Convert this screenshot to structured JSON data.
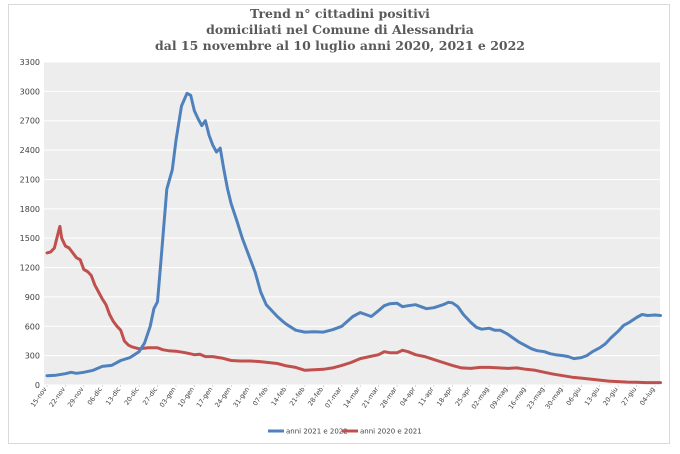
{
  "chart_data": {
    "type": "line",
    "title": [
      "Trend n° cittadini positivi",
      "domiciliati nel Comune di Alessandria",
      "dal 15 novembre al 10 luglio anni 2020, 2021 e 2022"
    ],
    "xlabel": "",
    "ylabel": "",
    "ylim": [
      0,
      3300
    ],
    "yticks": [
      0,
      300,
      600,
      900,
      1200,
      1500,
      1800,
      2100,
      2400,
      2700,
      3000,
      3300
    ],
    "categories": [
      "15-nov",
      "22-nov",
      "29-nov",
      "06-dic",
      "13-dic",
      "20-dic",
      "27-dic",
      "03-gen",
      "10-gen",
      "17-gen",
      "24-gen",
      "31-gen",
      "07-feb",
      "14-feb",
      "21-feb",
      "28-feb",
      "07-mar",
      "14-mar",
      "21-mar",
      "28-mar",
      "04-apr",
      "11-apr",
      "18-apr",
      "25-apr",
      "02-mag",
      "09-mag",
      "16-mag",
      "23-mag",
      "30-mag",
      "06-giu",
      "13-giu",
      "20-giu",
      "27-giu",
      "04-lug"
    ],
    "grid": true,
    "legend_position": "bottom",
    "series": [
      {
        "name": "anni 2021 e 2022",
        "color": "#4f81bd",
        "points": [
          [
            0,
            95
          ],
          [
            0.5,
            100
          ],
          [
            1,
            115
          ],
          [
            1.3,
            130
          ],
          [
            1.6,
            120
          ],
          [
            2,
            130
          ],
          [
            2.5,
            150
          ],
          [
            3,
            190
          ],
          [
            3.5,
            200
          ],
          [
            3.8,
            230
          ],
          [
            4,
            250
          ],
          [
            4.5,
            280
          ],
          [
            5,
            340
          ],
          [
            5.3,
            430
          ],
          [
            5.6,
            600
          ],
          [
            5.8,
            780
          ],
          [
            6,
            850
          ],
          [
            6.2,
            1300
          ],
          [
            6.5,
            2000
          ],
          [
            6.8,
            2200
          ],
          [
            7,
            2500
          ],
          [
            7.3,
            2850
          ],
          [
            7.6,
            2980
          ],
          [
            7.8,
            2960
          ],
          [
            8,
            2800
          ],
          [
            8.2,
            2720
          ],
          [
            8.4,
            2650
          ],
          [
            8.6,
            2700
          ],
          [
            8.8,
            2550
          ],
          [
            9,
            2450
          ],
          [
            9.2,
            2380
          ],
          [
            9.4,
            2420
          ],
          [
            9.6,
            2200
          ],
          [
            9.8,
            2000
          ],
          [
            10,
            1850
          ],
          [
            10.3,
            1680
          ],
          [
            10.6,
            1500
          ],
          [
            11,
            1300
          ],
          [
            11.3,
            1150
          ],
          [
            11.6,
            950
          ],
          [
            11.9,
            820
          ],
          [
            12.2,
            760
          ],
          [
            12.5,
            700
          ],
          [
            12.8,
            650
          ],
          [
            13,
            620
          ],
          [
            13.5,
            560
          ],
          [
            14,
            540
          ],
          [
            14.5,
            545
          ],
          [
            15,
            540
          ],
          [
            15.5,
            565
          ],
          [
            16,
            600
          ],
          [
            16.3,
            650
          ],
          [
            16.6,
            700
          ],
          [
            17,
            740
          ],
          [
            17.3,
            720
          ],
          [
            17.6,
            700
          ],
          [
            18,
            760
          ],
          [
            18.3,
            810
          ],
          [
            18.6,
            830
          ],
          [
            19,
            835
          ],
          [
            19.3,
            800
          ],
          [
            19.6,
            810
          ],
          [
            20,
            820
          ],
          [
            20.3,
            800
          ],
          [
            20.6,
            780
          ],
          [
            21,
            790
          ],
          [
            21.5,
            820
          ],
          [
            21.8,
            845
          ],
          [
            22,
            840
          ],
          [
            22.3,
            800
          ],
          [
            22.6,
            720
          ],
          [
            23,
            640
          ],
          [
            23.3,
            590
          ],
          [
            23.6,
            570
          ],
          [
            24,
            580
          ],
          [
            24.3,
            560
          ],
          [
            24.6,
            560
          ],
          [
            25,
            520
          ],
          [
            25.3,
            480
          ],
          [
            25.6,
            440
          ],
          [
            26,
            400
          ],
          [
            26.3,
            370
          ],
          [
            26.6,
            350
          ],
          [
            27,
            340
          ],
          [
            27.3,
            320
          ],
          [
            27.6,
            310
          ],
          [
            28,
            300
          ],
          [
            28.3,
            290
          ],
          [
            28.6,
            270
          ],
          [
            29,
            280
          ],
          [
            29.3,
            300
          ],
          [
            29.6,
            340
          ],
          [
            30,
            380
          ],
          [
            30.3,
            420
          ],
          [
            30.6,
            480
          ],
          [
            31,
            550
          ],
          [
            31.3,
            610
          ],
          [
            31.6,
            640
          ],
          [
            32,
            690
          ],
          [
            32.3,
            720
          ],
          [
            32.6,
            710
          ],
          [
            33,
            715
          ],
          [
            33.3,
            710
          ]
        ]
      },
      {
        "name": "anni 2020 e 2021",
        "color": "#c0504d",
        "points": [
          [
            0,
            1350
          ],
          [
            0.2,
            1360
          ],
          [
            0.4,
            1400
          ],
          [
            0.6,
            1550
          ],
          [
            0.7,
            1620
          ],
          [
            0.8,
            1500
          ],
          [
            1,
            1420
          ],
          [
            1.2,
            1400
          ],
          [
            1.4,
            1350
          ],
          [
            1.6,
            1300
          ],
          [
            1.8,
            1280
          ],
          [
            2,
            1180
          ],
          [
            2.2,
            1160
          ],
          [
            2.4,
            1120
          ],
          [
            2.6,
            1020
          ],
          [
            2.8,
            950
          ],
          [
            3,
            880
          ],
          [
            3.2,
            820
          ],
          [
            3.4,
            720
          ],
          [
            3.6,
            650
          ],
          [
            3.8,
            600
          ],
          [
            4,
            560
          ],
          [
            4.2,
            450
          ],
          [
            4.4,
            410
          ],
          [
            4.6,
            390
          ],
          [
            4.8,
            380
          ],
          [
            5,
            370
          ],
          [
            5.5,
            380
          ],
          [
            6,
            380
          ],
          [
            6.3,
            360
          ],
          [
            6.6,
            350
          ],
          [
            7,
            345
          ],
          [
            7.5,
            330
          ],
          [
            8,
            310
          ],
          [
            8.3,
            315
          ],
          [
            8.6,
            290
          ],
          [
            9,
            290
          ],
          [
            9.5,
            275
          ],
          [
            10,
            250
          ],
          [
            10.5,
            245
          ],
          [
            11,
            245
          ],
          [
            11.5,
            240
          ],
          [
            12,
            230
          ],
          [
            12.5,
            220
          ],
          [
            13,
            195
          ],
          [
            13.5,
            180
          ],
          [
            14,
            150
          ],
          [
            14.5,
            155
          ],
          [
            15,
            160
          ],
          [
            15.5,
            175
          ],
          [
            16,
            200
          ],
          [
            16.5,
            230
          ],
          [
            17,
            270
          ],
          [
            17.5,
            290
          ],
          [
            18,
            310
          ],
          [
            18.3,
            340
          ],
          [
            18.6,
            330
          ],
          [
            19,
            330
          ],
          [
            19.3,
            355
          ],
          [
            19.6,
            340
          ],
          [
            20,
            310
          ],
          [
            20.5,
            290
          ],
          [
            21,
            260
          ],
          [
            21.5,
            230
          ],
          [
            22,
            200
          ],
          [
            22.5,
            175
          ],
          [
            23,
            170
          ],
          [
            23.5,
            180
          ],
          [
            24,
            180
          ],
          [
            24.5,
            175
          ],
          [
            25,
            170
          ],
          [
            25.5,
            175
          ],
          [
            26,
            160
          ],
          [
            26.5,
            150
          ],
          [
            27,
            130
          ],
          [
            27.5,
            110
          ],
          [
            28,
            95
          ],
          [
            28.5,
            80
          ],
          [
            29,
            70
          ],
          [
            29.5,
            60
          ],
          [
            30,
            50
          ],
          [
            30.5,
            40
          ],
          [
            31,
            35
          ],
          [
            31.5,
            30
          ],
          [
            32,
            28
          ],
          [
            32.5,
            25
          ],
          [
            33,
            25
          ],
          [
            33.3,
            25
          ]
        ]
      }
    ]
  }
}
